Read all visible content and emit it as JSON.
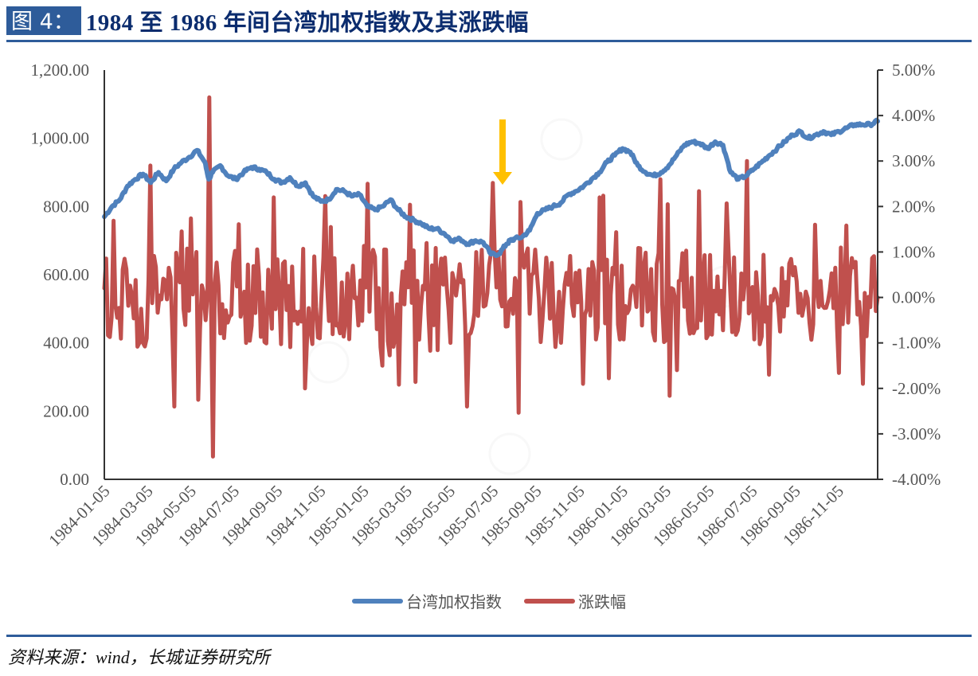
{
  "header": {
    "figure_label": "图 4：",
    "title": "1984 至 1986 年间台湾加权指数及其涨跌幅"
  },
  "footer": {
    "source": "资料来源：wind，长城证券研究所"
  },
  "legend": {
    "items": [
      {
        "label": "台湾加权指数",
        "color": "#4f81bd"
      },
      {
        "label": "涨跌幅",
        "color": "#c0504d"
      }
    ]
  },
  "annotation": {
    "arrow_color": "#ffc000",
    "arrow_x_date": "1985-07-05"
  },
  "chart_data": {
    "type": "line",
    "title": "1984 至 1986 年间台湾加权指数及其涨跌幅",
    "xlabel": "",
    "ylabel_left": "",
    "ylabel_right": "",
    "x_tick_labels": [
      "1984-01-05",
      "1984-03-05",
      "1984-05-05",
      "1984-07-05",
      "1984-09-05",
      "1984-11-05",
      "1985-01-05",
      "1985-03-05",
      "1985-05-05",
      "1985-07-05",
      "1985-09-05",
      "1985-11-05",
      "1986-01-05",
      "1986-03-05",
      "1986-05-05",
      "1986-07-05",
      "1986-09-05",
      "1986-11-05"
    ],
    "y_left": {
      "range": [
        0,
        1200
      ],
      "ticks": [
        "0.00",
        "200.00",
        "400.00",
        "600.00",
        "800.00",
        "1,000.00",
        "1,200.00"
      ]
    },
    "y_right": {
      "range": [
        -0.04,
        0.05
      ],
      "ticks": [
        "-4.00%",
        "-3.00%",
        "-2.00%",
        "-1.00%",
        "0.00%",
        "1.00%",
        "2.00%",
        "3.00%",
        "4.00%",
        "5.00%"
      ]
    },
    "legend_position": "bottom",
    "grid": false,
    "series": [
      {
        "name": "台湾加权指数",
        "axis": "left",
        "color": "#4f81bd",
        "x_fraction": [
          0,
          0.01,
          0.02,
          0.03,
          0.04,
          0.05,
          0.06,
          0.07,
          0.08,
          0.09,
          0.1,
          0.11,
          0.12,
          0.13,
          0.135,
          0.14,
          0.15,
          0.16,
          0.17,
          0.18,
          0.19,
          0.2,
          0.21,
          0.22,
          0.23,
          0.24,
          0.25,
          0.26,
          0.27,
          0.28,
          0.29,
          0.3,
          0.31,
          0.32,
          0.33,
          0.34,
          0.35,
          0.36,
          0.37,
          0.38,
          0.39,
          0.4,
          0.41,
          0.42,
          0.43,
          0.44,
          0.45,
          0.46,
          0.47,
          0.48,
          0.49,
          0.5,
          0.51,
          0.52,
          0.525,
          0.53,
          0.54,
          0.55,
          0.56,
          0.57,
          0.58,
          0.59,
          0.6,
          0.61,
          0.62,
          0.63,
          0.64,
          0.65,
          0.66,
          0.67,
          0.68,
          0.69,
          0.7,
          0.71,
          0.72,
          0.73,
          0.74,
          0.75,
          0.76,
          0.77,
          0.78,
          0.79,
          0.8,
          0.81,
          0.82,
          0.83,
          0.84,
          0.85,
          0.86,
          0.87,
          0.88,
          0.89,
          0.9,
          0.91,
          0.92,
          0.93,
          0.94,
          0.95,
          0.96,
          0.97,
          0.98,
          0.99,
          1.0
        ],
        "values": [
          770,
          800,
          820,
          860,
          880,
          895,
          870,
          900,
          875,
          910,
          930,
          945,
          965,
          930,
          880,
          900,
          920,
          890,
          880,
          900,
          915,
          910,
          900,
          880,
          870,
          885,
          860,
          870,
          830,
          815,
          820,
          850,
          845,
          830,
          835,
          800,
          790,
          800,
          820,
          790,
          770,
          760,
          750,
          735,
          735,
          720,
          700,
          705,
          690,
          700,
          695,
          660,
          660,
          690,
          700,
          705,
          710,
          730,
          780,
          790,
          800,
          810,
          835,
          845,
          860,
          880,
          900,
          930,
          950,
          970,
          960,
          920,
          900,
          890,
          900,
          920,
          950,
          980,
          990,
          985,
          970,
          990,
          980,
          900,
          880,
          890,
          910,
          930,
          950,
          970,
          990,
          1010,
          1020,
          1000,
          1010,
          1020,
          1010,
          1020,
          1030,
          1040,
          1040,
          1040,
          1050
        ]
      },
      {
        "name": "涨跌幅",
        "axis": "right",
        "color": "#c0504d",
        "note": "daily % change, oscillating roughly between -2% and +2%; extremes ≈ +4.4% (1984-05) and -3.5% (1984-05)",
        "x_fraction": [
          0,
          0.05,
          0.06,
          0.09,
          0.13,
          0.135,
          0.14,
          0.22,
          0.26,
          0.34,
          0.36,
          0.47,
          0.51,
          0.62,
          0.64,
          0.72,
          0.74,
          0.83,
          0.86,
          0.92,
          0.98,
          1.0
        ],
        "values": [
          0.002,
          -0.01,
          0.029,
          -0.024,
          -0.005,
          0.044,
          -0.035,
          0.022,
          -0.02,
          0.025,
          -0.015,
          -0.024,
          0.01,
          -0.019,
          0.022,
          0.026,
          -0.016,
          0.03,
          -0.017,
          0.016,
          -0.019,
          0.0
        ]
      }
    ]
  }
}
